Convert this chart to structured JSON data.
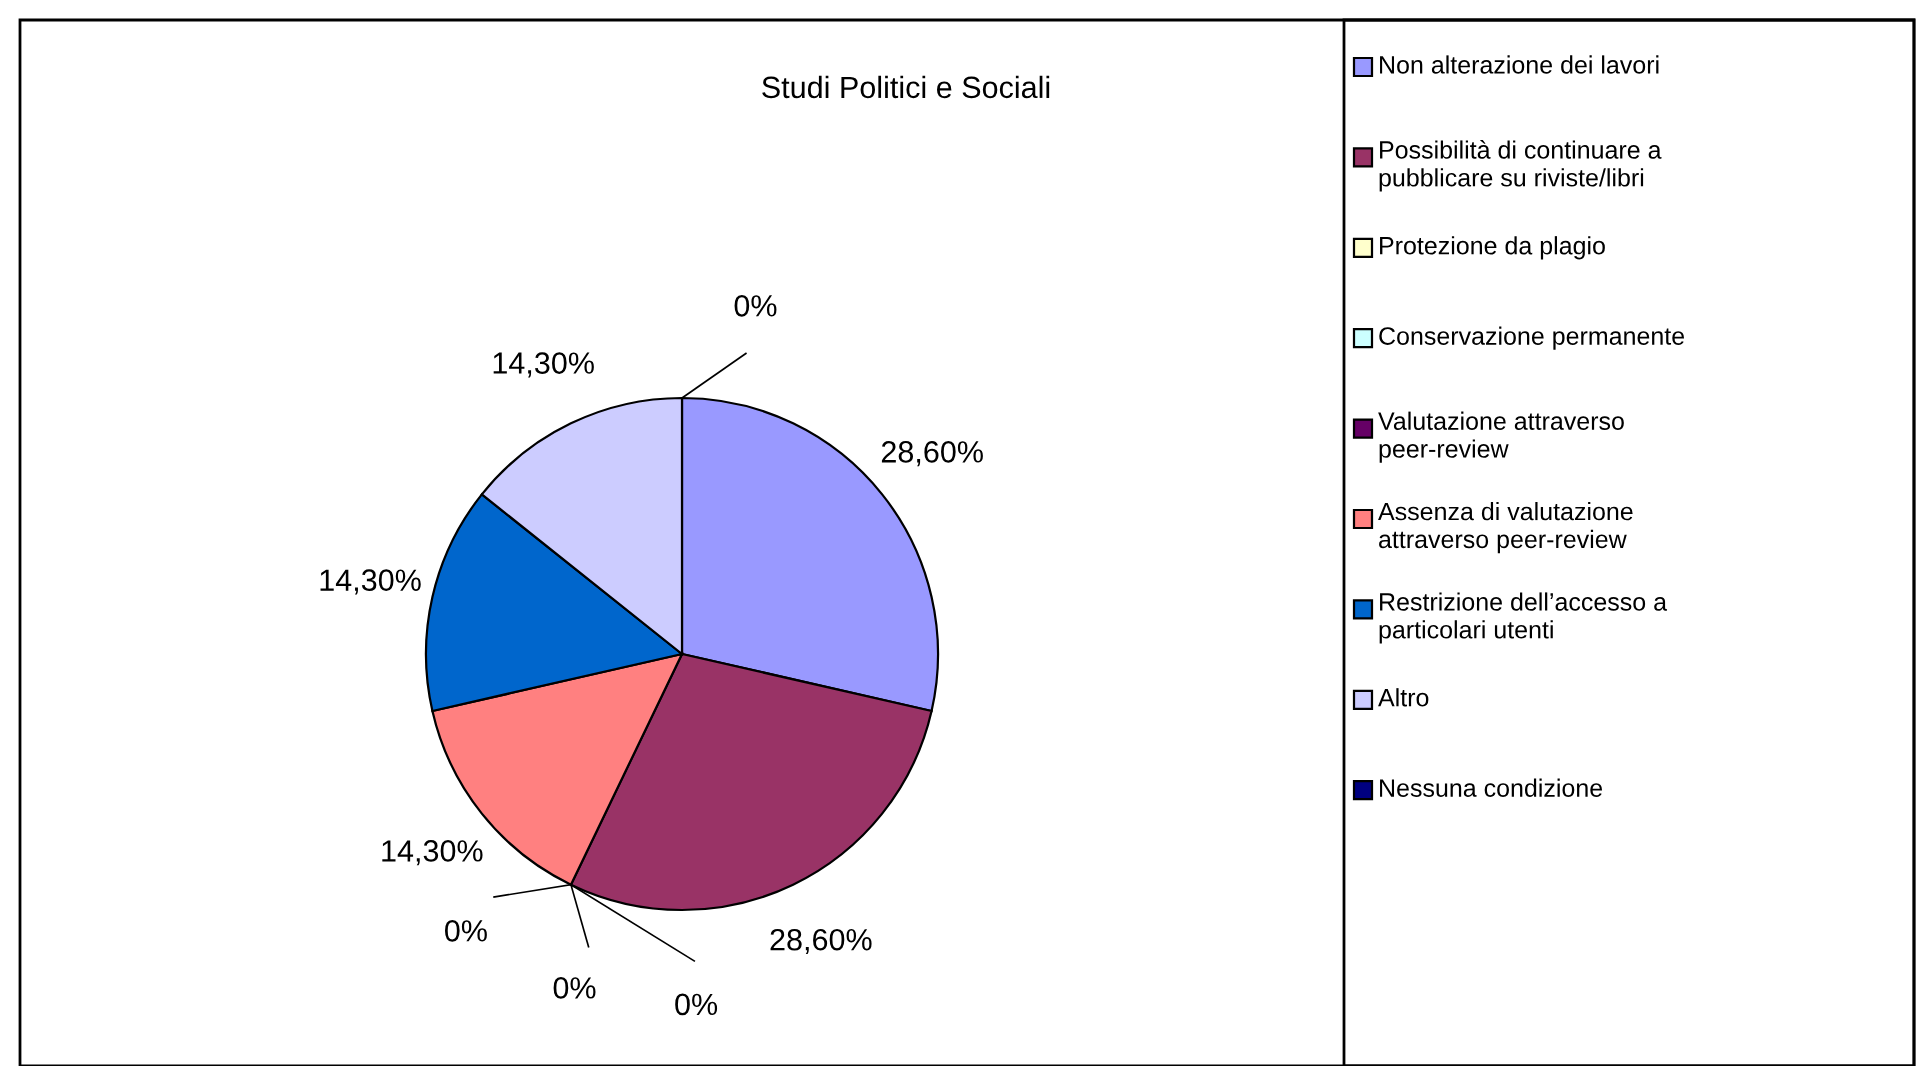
{
  "chart_data": {
    "type": "pie",
    "title": "Studi Politici e Sociali",
    "categories": [
      "Non alterazione dei lavori",
      "Possibilità di continuare a pubblicare su riviste/libri",
      "Protezione da plagio",
      "Conservazione permanente",
      "Valutazione attraverso peer-review",
      "Assenza di valutazione attraverso peer-review",
      "Restrizione dell’accesso a particolari utenti",
      "Altro",
      "Nessuna condizione"
    ],
    "values": [
      28.6,
      28.6,
      0,
      0,
      0,
      14.3,
      14.3,
      14.3,
      0
    ],
    "value_labels": [
      "28,60%",
      "28,60%",
      "0%",
      "0%",
      "0%",
      "14,30%",
      "14,30%",
      "14,30%",
      "0%"
    ],
    "colors": [
      "#9999ff",
      "#993366",
      "#ffffcc",
      "#ccffff",
      "#660066",
      "#ff8080",
      "#0066cc",
      "#ccccff",
      "#000080"
    ],
    "legend": "right"
  }
}
